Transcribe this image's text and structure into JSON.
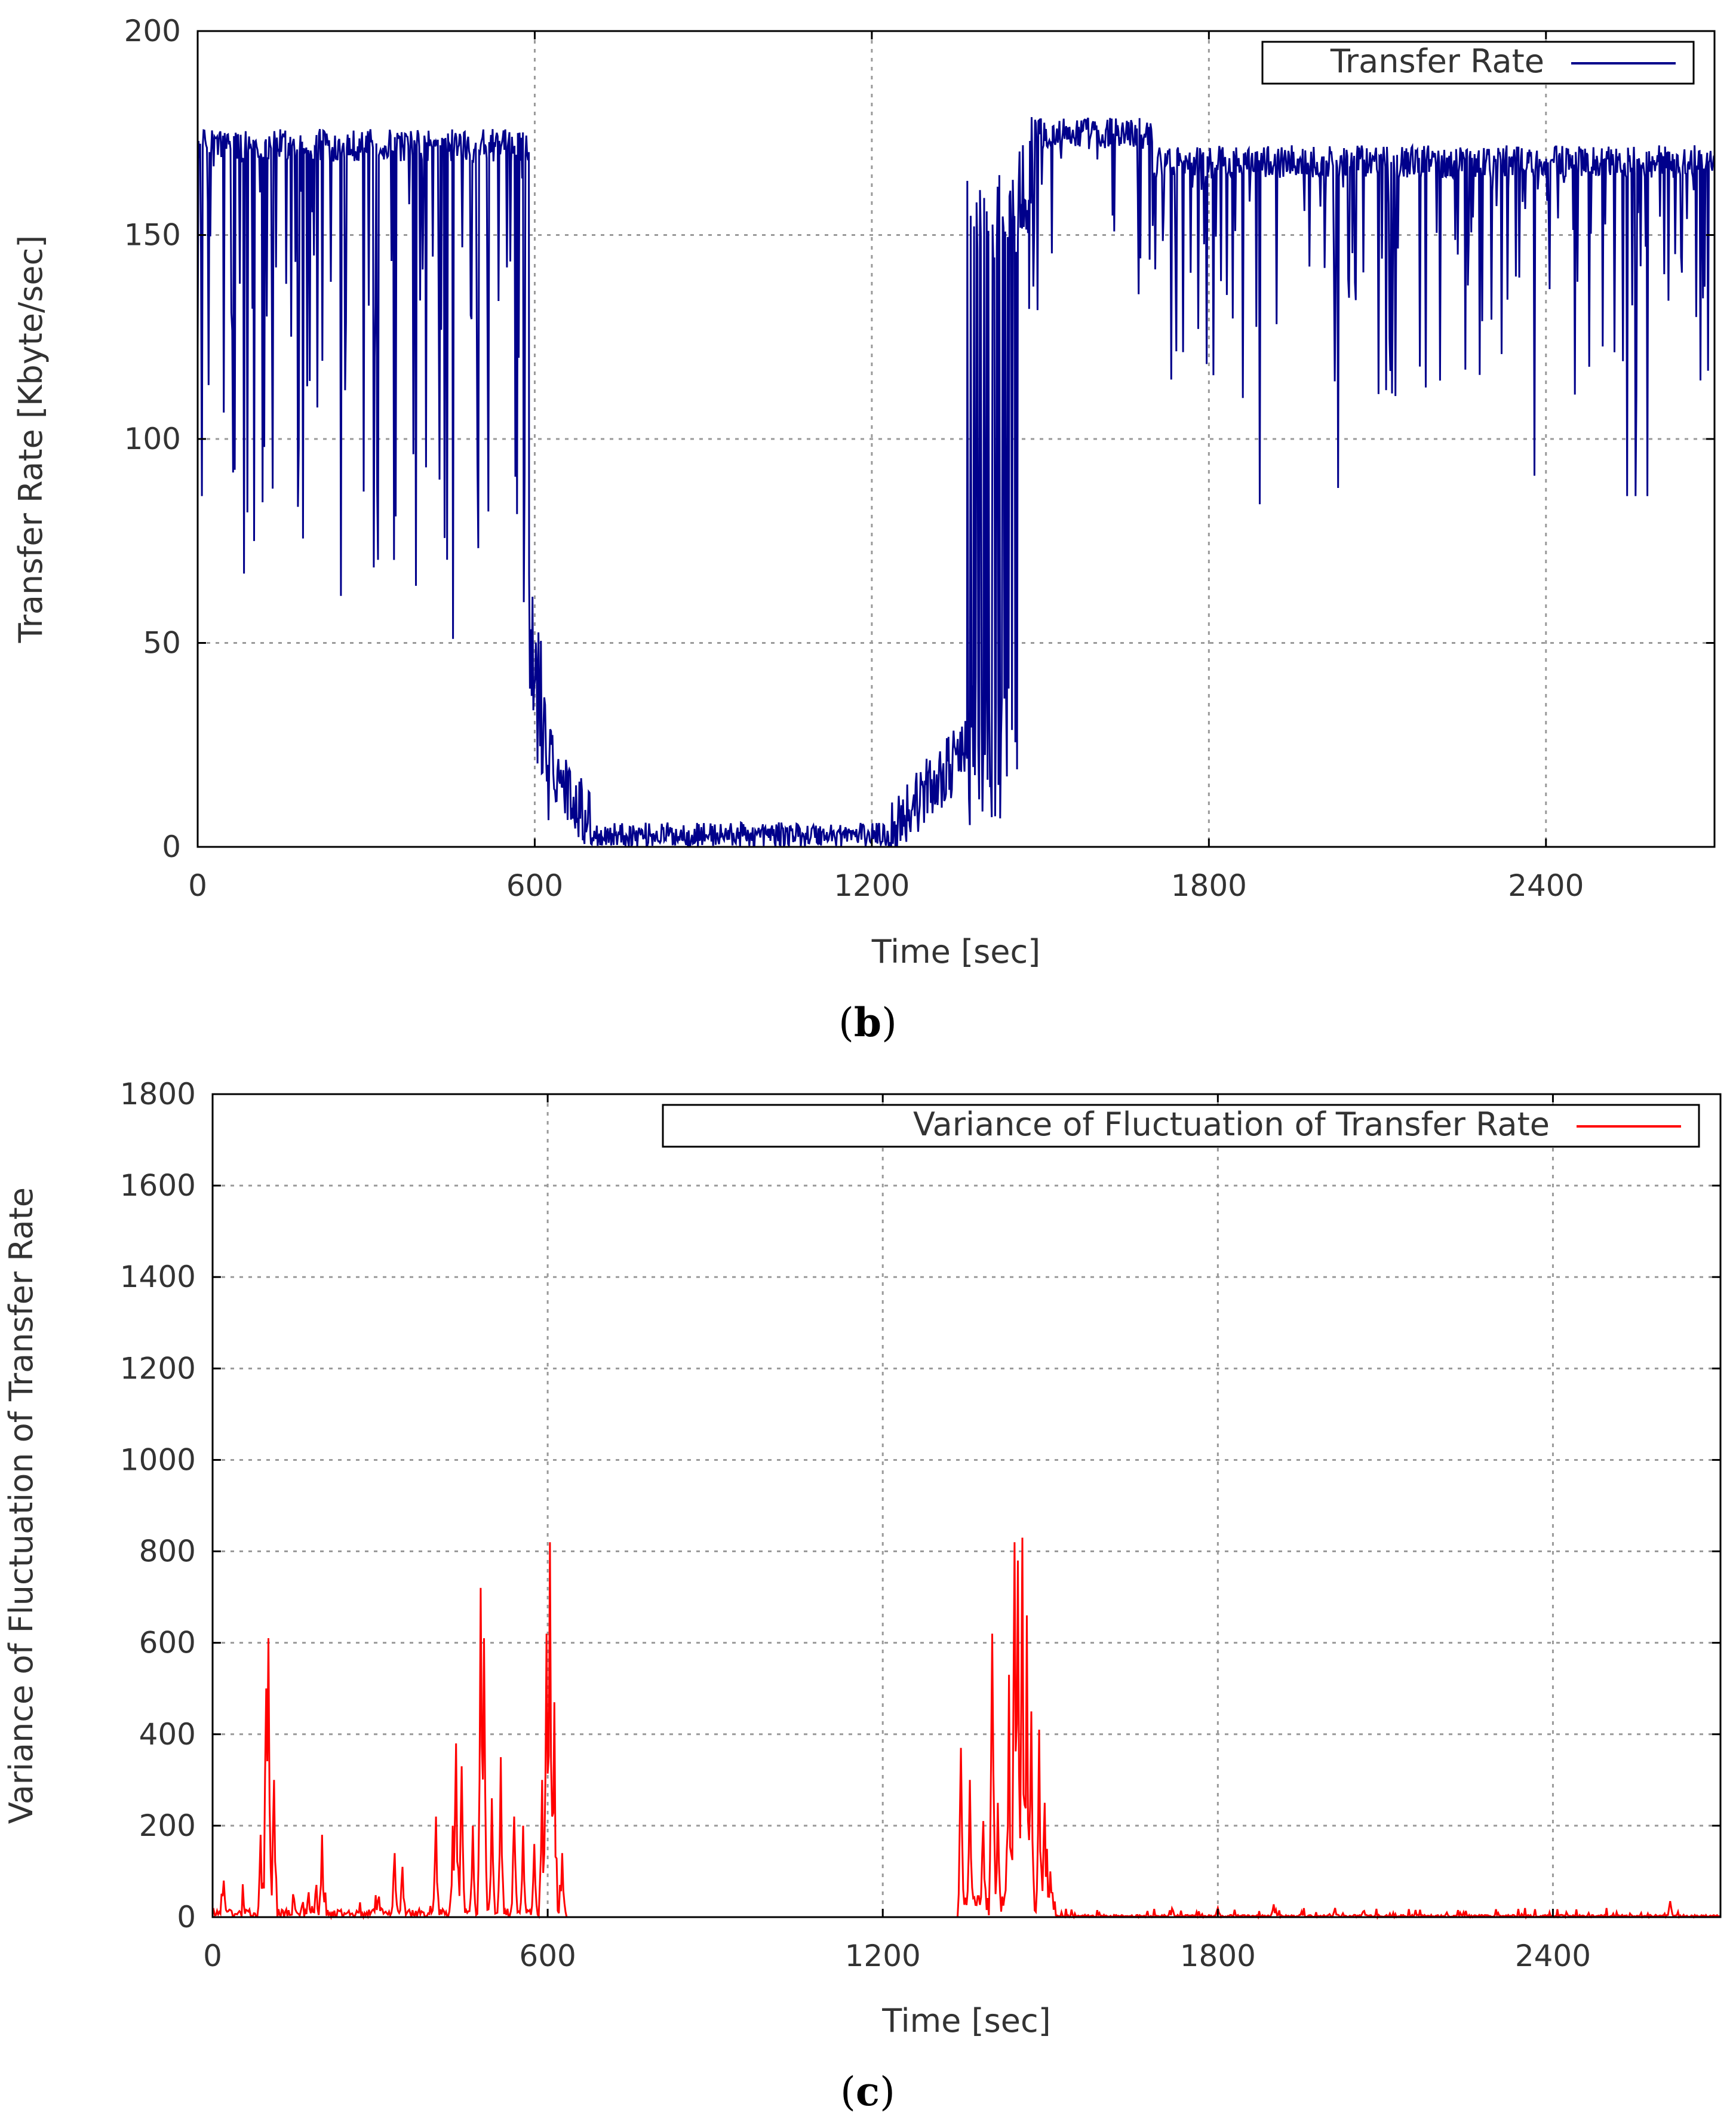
{
  "chart_data": [
    {
      "id": "b",
      "type": "line",
      "panel_label": "b",
      "xlabel": "Time [sec]",
      "ylabel": "Transfer Rate [Kbyte/sec]",
      "xlim": [
        0,
        2700
      ],
      "ylim": [
        0,
        200
      ],
      "xticks": [
        0,
        600,
        1200,
        1800,
        2400
      ],
      "yticks": [
        0,
        50,
        100,
        150,
        200
      ],
      "grid": true,
      "legend_position": "top-right",
      "series": [
        {
          "name": "Transfer Rate",
          "color": "#00008b",
          "segments": [
            {
              "x0": 0,
              "x1": 590,
              "base": 172,
              "noise": 4,
              "drop_prob": 0.22,
              "drop_min": 60,
              "drop_max": 175
            },
            {
              "x0": 590,
              "x1": 630,
              "base": 45,
              "noise": 18,
              "drop_prob": 0.1,
              "drop_min": 0,
              "drop_max": 40
            },
            {
              "x0": 630,
              "x1": 700,
              "base": 14,
              "noise": 8,
              "drop_prob": 0.0,
              "drop_min": 0,
              "drop_max": 0
            },
            {
              "x0": 700,
              "x1": 1230,
              "base": 3,
              "noise": 3,
              "drop_prob": 0.0,
              "drop_min": 0,
              "drop_max": 0
            },
            {
              "x0": 1230,
              "x1": 1370,
              "base": 12,
              "noise": 8,
              "drop_prob": 0.0,
              "drop_min": 0,
              "drop_max": 0
            },
            {
              "x0": 1370,
              "x1": 1480,
              "base": 90,
              "noise": 70,
              "drop_prob": 0.3,
              "drop_min": 2,
              "drop_max": 30
            },
            {
              "x0": 1480,
              "x1": 1700,
              "base": 175,
              "noise": 4,
              "drop_prob": 0.12,
              "drop_min": 130,
              "drop_max": 170
            },
            {
              "x0": 1700,
              "x1": 2700,
              "base": 168,
              "noise": 4,
              "drop_prob": 0.15,
              "drop_min": 110,
              "drop_max": 165
            }
          ],
          "spikes": [
            {
              "x": 8,
              "y": 86
            },
            {
              "x": 82,
              "y": 67
            },
            {
              "x": 88,
              "y": 82
            },
            {
              "x": 180,
              "y": 98
            },
            {
              "x": 320,
              "y": 88
            },
            {
              "x": 388,
              "y": 64
            },
            {
              "x": 455,
              "y": 51
            },
            {
              "x": 580,
              "y": 60
            },
            {
              "x": 1890,
              "y": 84
            },
            {
              "x": 2030,
              "y": 88
            },
            {
              "x": 2380,
              "y": 91
            },
            {
              "x": 2545,
              "y": 86
            },
            {
              "x": 2560,
              "y": 86
            },
            {
              "x": 2580,
              "y": 86
            }
          ]
        }
      ]
    },
    {
      "id": "c",
      "type": "line",
      "panel_label": "c",
      "xlabel": "Time [sec]",
      "ylabel": "Variance of Fluctuation of Transfer Rate",
      "xlim": [
        0,
        2700
      ],
      "ylim": [
        0,
        1800
      ],
      "xticks": [
        0,
        600,
        1200,
        1800,
        2400
      ],
      "yticks": [
        0,
        200,
        400,
        600,
        800,
        1000,
        1200,
        1400,
        1600,
        1800
      ],
      "grid": true,
      "legend_position": "top-right",
      "series": [
        {
          "name": "Variance of Fluctuation of Transfer Rate",
          "color": "#ff0000",
          "peaks": [
            {
              "x": 20,
              "y": 80
            },
            {
              "x": 85,
              "y": 180
            },
            {
              "x": 95,
              "y": 500
            },
            {
              "x": 100,
              "y": 610
            },
            {
              "x": 110,
              "y": 300
            },
            {
              "x": 195,
              "y": 180
            },
            {
              "x": 325,
              "y": 140
            },
            {
              "x": 340,
              "y": 110
            },
            {
              "x": 400,
              "y": 120
            },
            {
              "x": 400,
              "y": 220
            },
            {
              "x": 430,
              "y": 200
            },
            {
              "x": 435,
              "y": 380
            },
            {
              "x": 445,
              "y": 330
            },
            {
              "x": 465,
              "y": 200
            },
            {
              "x": 480,
              "y": 720
            },
            {
              "x": 485,
              "y": 610
            },
            {
              "x": 500,
              "y": 260
            },
            {
              "x": 515,
              "y": 350
            },
            {
              "x": 540,
              "y": 220
            },
            {
              "x": 555,
              "y": 200
            },
            {
              "x": 575,
              "y": 160
            },
            {
              "x": 590,
              "y": 300
            },
            {
              "x": 598,
              "y": 620
            },
            {
              "x": 603,
              "y": 820
            },
            {
              "x": 612,
              "y": 470
            },
            {
              "x": 625,
              "y": 140
            },
            {
              "x": 1340,
              "y": 370
            },
            {
              "x": 1355,
              "y": 300
            },
            {
              "x": 1380,
              "y": 210
            },
            {
              "x": 1395,
              "y": 620
            },
            {
              "x": 1405,
              "y": 250
            },
            {
              "x": 1425,
              "y": 530
            },
            {
              "x": 1435,
              "y": 820
            },
            {
              "x": 1442,
              "y": 780
            },
            {
              "x": 1450,
              "y": 830
            },
            {
              "x": 1458,
              "y": 660
            },
            {
              "x": 1465,
              "y": 450
            },
            {
              "x": 1480,
              "y": 410
            },
            {
              "x": 1490,
              "y": 250
            },
            {
              "x": 1500,
              "y": 100
            }
          ],
          "activity": [
            {
              "x0": 0,
              "x1": 635,
              "level": 18
            },
            {
              "x0": 1340,
              "x1": 1510,
              "level": 60
            },
            {
              "x0": 1510,
              "x1": 2700,
              "level": 5
            }
          ],
          "small_bumps": [
            {
              "x": 1800,
              "y": 20
            },
            {
              "x": 1900,
              "y": 28
            },
            {
              "x": 2010,
              "y": 20
            },
            {
              "x": 2060,
              "y": 12
            },
            {
              "x": 2210,
              "y": 10
            },
            {
              "x": 2610,
              "y": 35
            }
          ]
        }
      ]
    }
  ]
}
